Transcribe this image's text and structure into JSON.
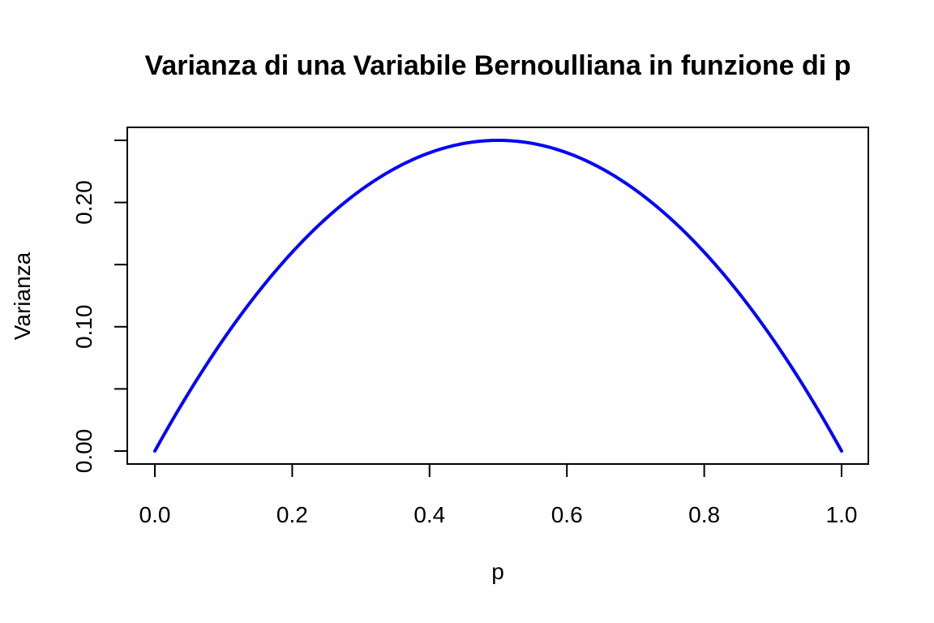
{
  "chart_data": {
    "type": "line",
    "title": "Varianza di una Variabile Bernoulliana in funzione di p",
    "xlabel": "p",
    "ylabel": "Varianza",
    "xlim": [
      0,
      1
    ],
    "ylim": [
      0,
      0.25
    ],
    "x_ticks": [
      0.0,
      0.2,
      0.4,
      0.6,
      0.8,
      1.0
    ],
    "x_tick_labels": [
      "0.0",
      "0.2",
      "0.4",
      "0.6",
      "0.8",
      "1.0"
    ],
    "y_ticks": [
      0.0,
      0.05,
      0.1,
      0.15,
      0.2,
      0.25
    ],
    "y_tick_labels": [
      "0.00",
      "",
      "0.10",
      "",
      "0.20",
      ""
    ],
    "grid": false,
    "series": [
      {
        "color": "#0000ff",
        "x": [
          0.0,
          0.05,
          0.1,
          0.15,
          0.2,
          0.25,
          0.3,
          0.35,
          0.4,
          0.45,
          0.5,
          0.55,
          0.6,
          0.65,
          0.7,
          0.75,
          0.8,
          0.85,
          0.9,
          0.95,
          1.0
        ],
        "y": [
          0.0,
          0.0475,
          0.09,
          0.1275,
          0.16,
          0.1875,
          0.21,
          0.2275,
          0.24,
          0.2475,
          0.25,
          0.2475,
          0.24,
          0.2275,
          0.21,
          0.1875,
          0.16,
          0.1275,
          0.09,
          0.0475,
          0.0
        ]
      }
    ]
  }
}
